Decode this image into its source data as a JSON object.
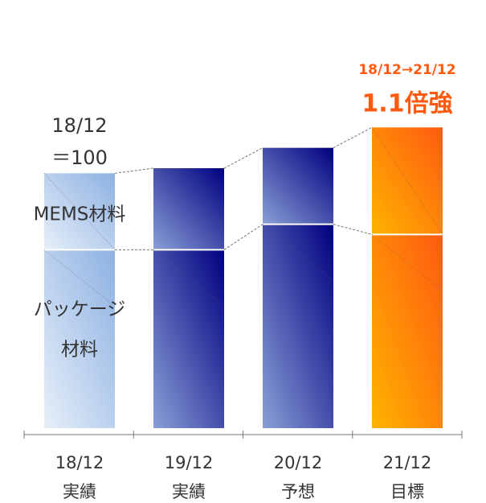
{
  "chart_data": {
    "type": "stacked_bar",
    "categories": [
      [
        "18/12",
        "実績"
      ],
      [
        "19/12",
        "実績"
      ],
      [
        "20/12",
        "予想"
      ],
      [
        "21/12",
        "目標"
      ]
    ],
    "series": [
      {
        "name": [
          "パッケージ",
          "材料"
        ],
        "values": [
          70,
          70,
          80,
          76
        ]
      },
      {
        "name": [
          "MEMS材料"
        ],
        "values": [
          30,
          32,
          30,
          42
        ]
      }
    ],
    "bar_gradients": [
      [
        "#e6eff9",
        "#8db1e2"
      ],
      [
        "#8a9fd6",
        "#000080"
      ],
      [
        "#8a9fd6",
        "#000080"
      ],
      [
        "#ffb300",
        "#ff5a10"
      ]
    ],
    "base_label": [
      "18/12",
      "＝100"
    ],
    "annotation": [
      "18/12→21/12",
      "1.1倍強"
    ],
    "annotation_color": "#ff5a10",
    "ylim": [
      0,
      120
    ]
  }
}
